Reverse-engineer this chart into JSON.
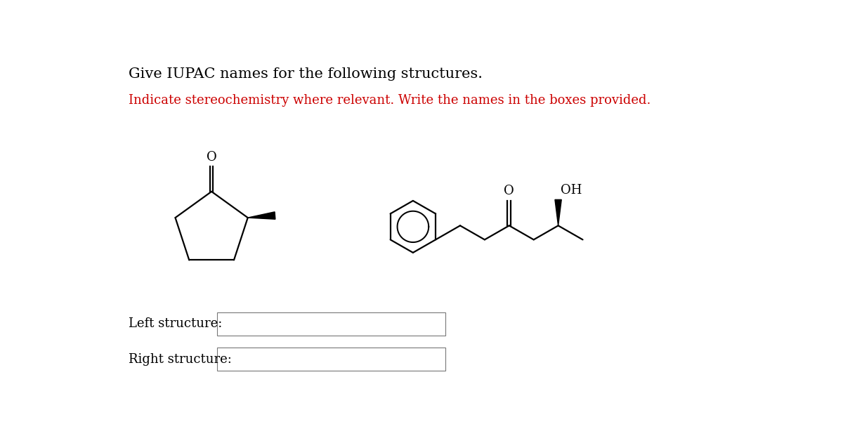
{
  "title_text": "Give IUPAC names for the following structures.",
  "subtitle_text": "Indicate stereochemistry where relevant. Write the names in the boxes provided.",
  "title_color": "#000000",
  "subtitle_color": "#cc0000",
  "label_left": "Left structure:",
  "label_right": "Right structure:",
  "bg_color": "#ffffff",
  "text_color": "#000000",
  "line_color": "#000000",
  "line_width": 1.6,
  "font_size_title": 15,
  "font_size_subtitle": 13,
  "font_size_labels": 13,
  "font_size_atom": 13
}
